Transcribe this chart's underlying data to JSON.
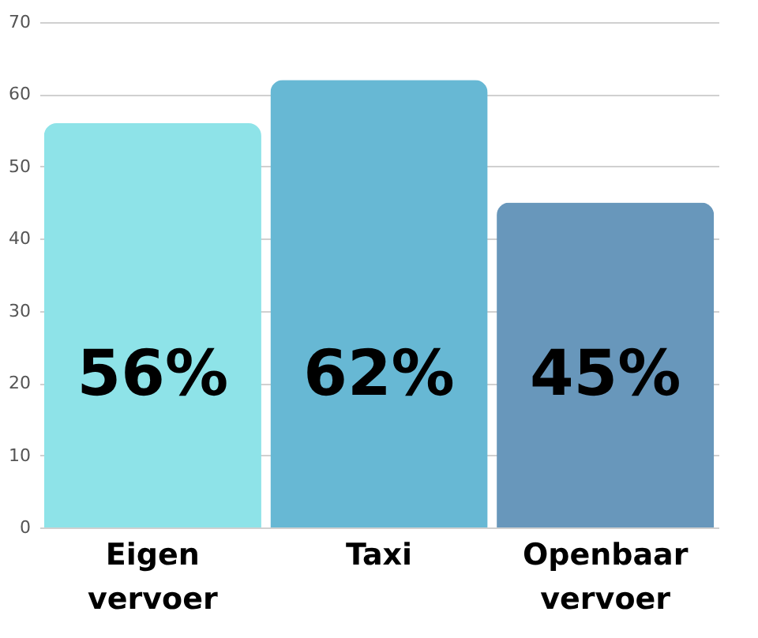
{
  "chart_data": {
    "type": "bar",
    "categories": [
      "Eigen vervoer",
      "Taxi",
      "Openbaar vervoer"
    ],
    "values": [
      56,
      62,
      45
    ],
    "colors": [
      "#8ee3e8",
      "#67b8d4",
      "#6897bb"
    ],
    "value_labels": [
      "56%",
      "62%",
      "45%"
    ],
    "ylim": [
      0,
      70
    ],
    "yticks": [
      0,
      10,
      20,
      30,
      40,
      50,
      60,
      70
    ],
    "grid": "y"
  }
}
